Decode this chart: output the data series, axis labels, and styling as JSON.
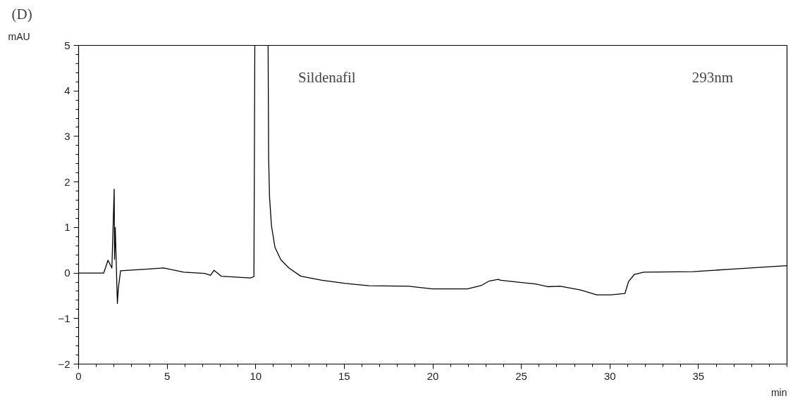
{
  "chart_data": {
    "type": "line",
    "title": "(D)",
    "ylabel": "mAU",
    "xlabel": "min",
    "x": [
      0,
      1.42,
      1.66,
      1.88,
      1.95,
      2.01,
      2.03,
      2.07,
      2.19,
      2.24,
      2.37,
      3.67,
      4.8,
      5.93,
      7.12,
      7.45,
      7.65,
      8.05,
      9.7,
      9.9,
      9.95,
      10.3,
      10.7,
      10.73,
      10.78,
      10.89,
      11.09,
      11.42,
      11.88,
      12.55,
      13.74,
      15.07,
      16.39,
      18.65,
      19.97,
      21.96,
      22.76,
      23.16,
      23.69,
      23.83,
      25.02,
      25.8,
      26.48,
      27.2,
      28.33,
      29.26,
      30.06,
      30.85,
      31.05,
      31.38,
      31.91,
      34.7,
      36.68,
      39.98
    ],
    "series": [
      {
        "color": "#000000",
        "values": [
          0,
          0,
          0.28,
          0.11,
          1.04,
          1.84,
          0.3,
          1.0,
          -0.67,
          -0.35,
          0.05,
          0.08,
          0.11,
          0.02,
          -0.01,
          -0.05,
          0.06,
          -0.07,
          -0.11,
          -0.08,
          5,
          null,
          5,
          2.54,
          1.68,
          1.04,
          0.56,
          0.29,
          0.11,
          -0.07,
          -0.16,
          -0.23,
          -0.28,
          -0.29,
          -0.35,
          -0.35,
          -0.27,
          -0.18,
          -0.14,
          -0.16,
          -0.21,
          -0.24,
          -0.3,
          -0.29,
          -0.37,
          -0.48,
          -0.48,
          -0.45,
          -0.19,
          -0.03,
          0.02,
          0.03,
          0.08,
          0.16
        ]
      }
    ],
    "xlim": [
      0,
      40
    ],
    "ylim": [
      -2,
      5
    ],
    "xticks": [
      0,
      5,
      10,
      15,
      20,
      25,
      30,
      35
    ],
    "yticks": [
      -2,
      -1,
      0,
      1,
      2,
      3,
      4,
      5
    ],
    "annotations": [
      "Sildenafil",
      "293nm"
    ],
    "grid": false,
    "line_style": "solid",
    "marker": "none"
  }
}
